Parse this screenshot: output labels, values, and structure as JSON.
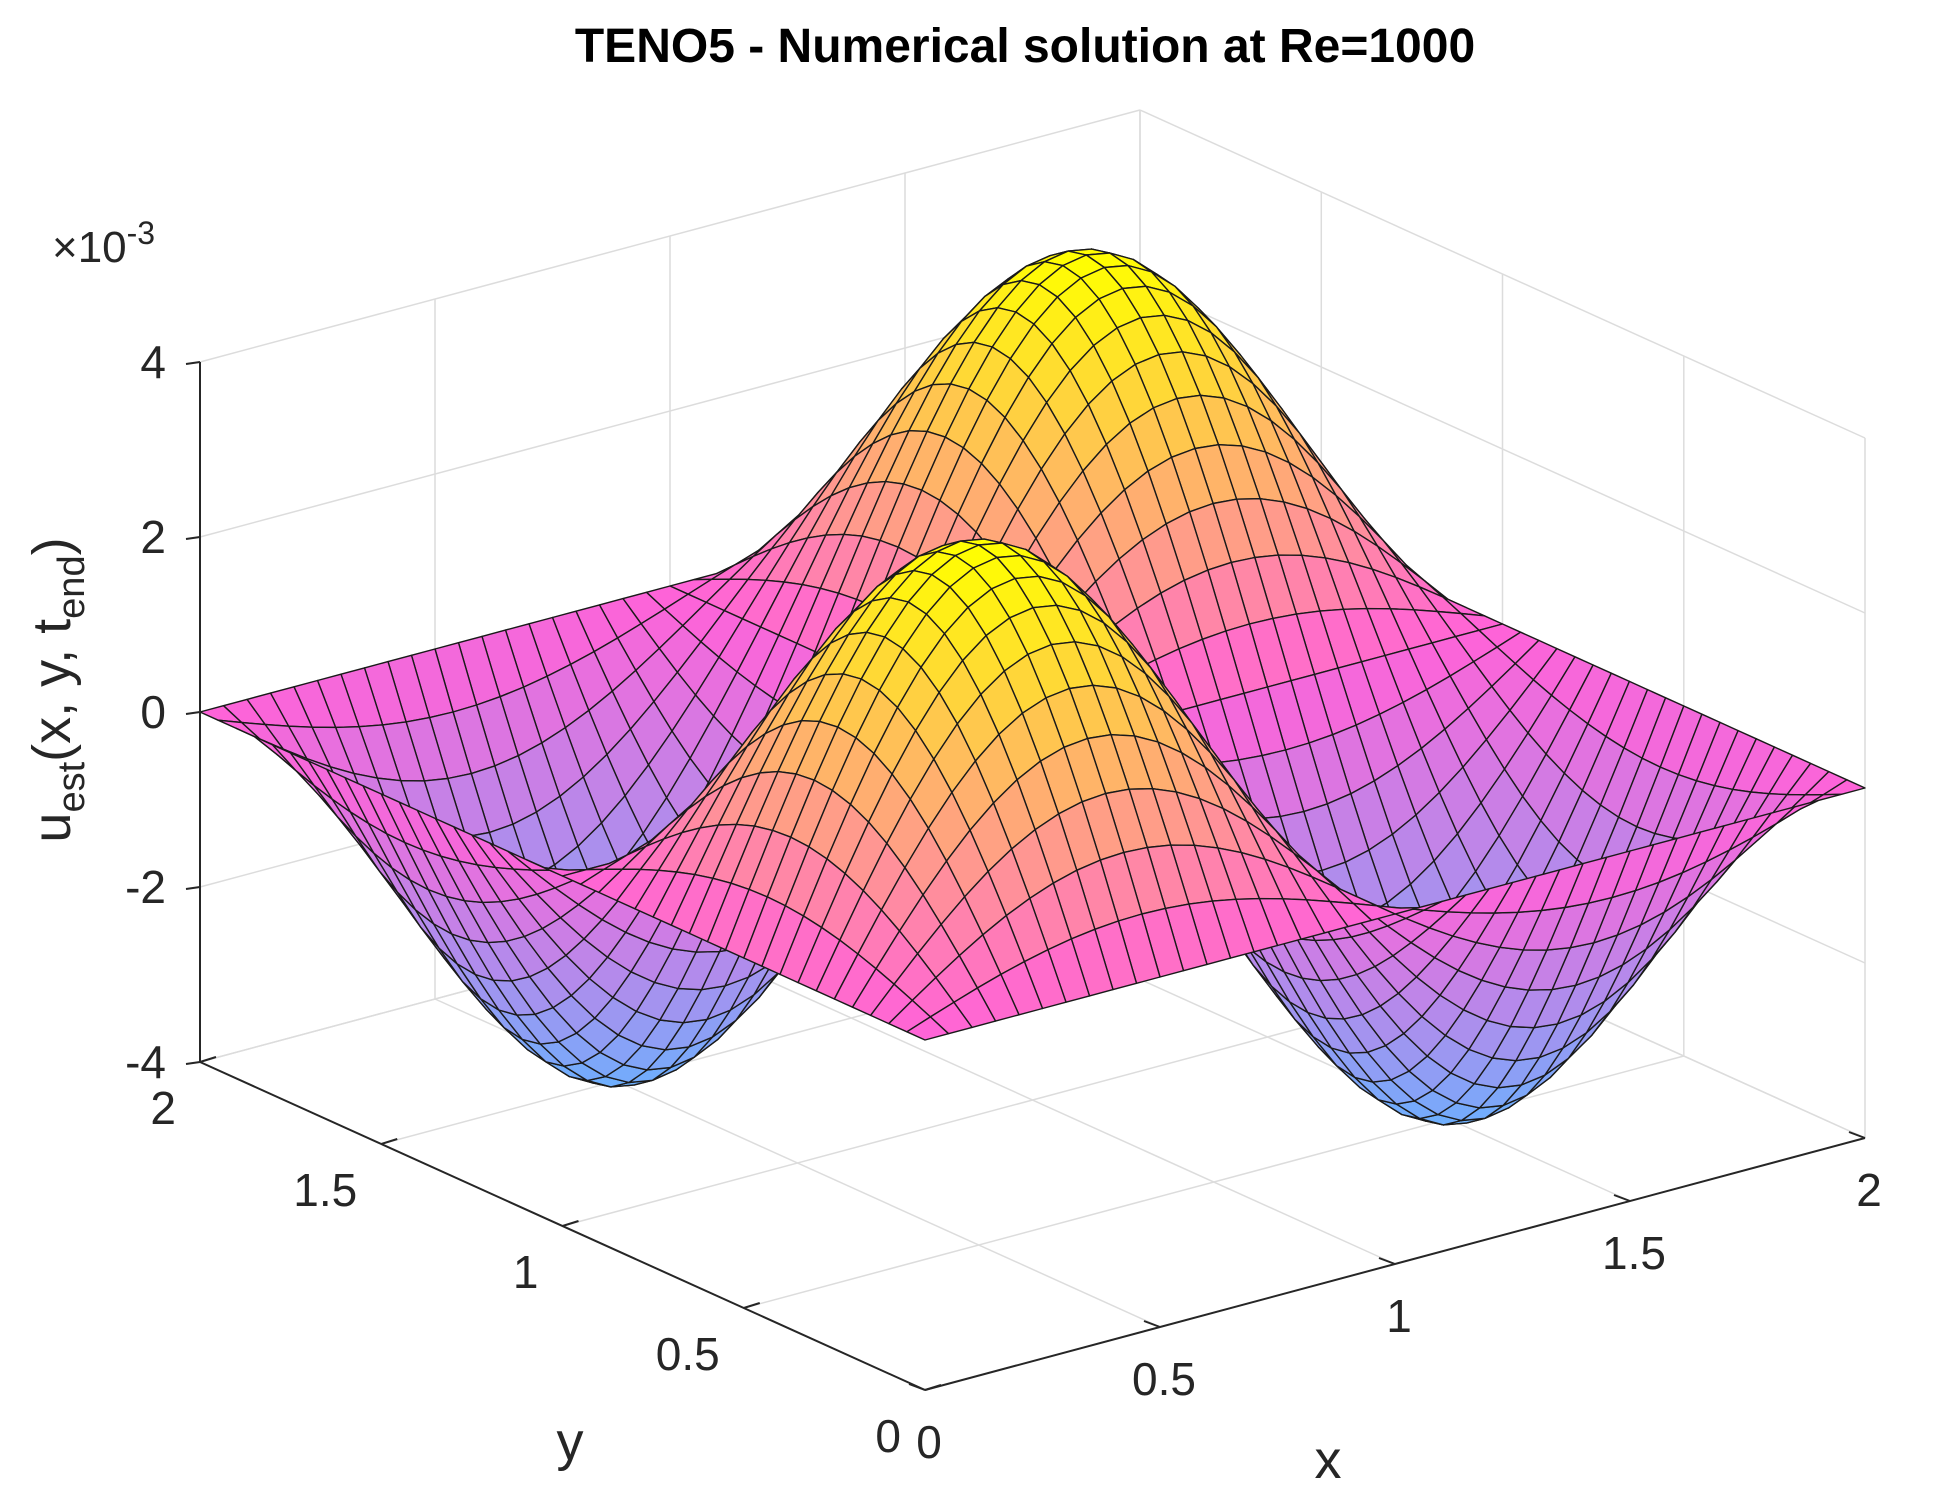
{
  "chart_data": {
    "type": "surface",
    "title": "TENO5 - Numerical solution at Re=1000",
    "xlabel": "x",
    "ylabel": "y",
    "zlabel": {
      "base": "u",
      "sub": "est",
      "open": "(x, y, t",
      "tsub": "end",
      "close": ")"
    },
    "z_exponent": {
      "prefix": "×10",
      "power": "-3"
    },
    "xlim": [
      0,
      2
    ],
    "ylim": [
      0,
      2
    ],
    "zlim": [
      -4,
      4
    ],
    "x_ticks": [
      "0",
      "0.5",
      "1",
      "1.5",
      "2"
    ],
    "y_ticks": [
      "0",
      "0.5",
      "1",
      "1.5",
      "2"
    ],
    "z_ticks": [
      "-4",
      "-2",
      "0",
      "2",
      "4"
    ],
    "z_tick_values": [
      -4,
      -2,
      0,
      2,
      4
    ],
    "x_tick_values": [
      0,
      0.5,
      1,
      1.5,
      2
    ],
    "y_tick_values": [
      0,
      0.5,
      1,
      1.5,
      2
    ],
    "surface": {
      "function": "u = A * sin(pi*x) * sin(pi*y)",
      "amplitude": 0.004,
      "grid_points": 41,
      "colormap": [
        "#66b3ff",
        "#ff63d8",
        "#ffff00"
      ]
    },
    "grid": true,
    "box": "back planes"
  }
}
